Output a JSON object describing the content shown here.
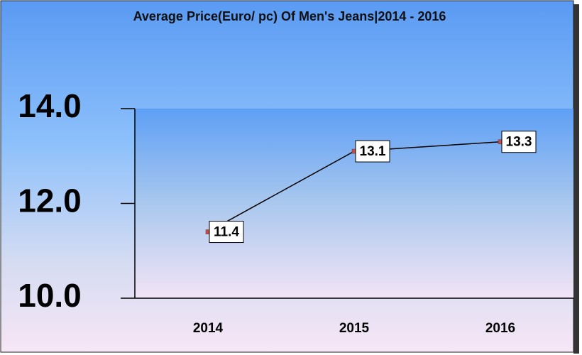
{
  "chart_data": {
    "type": "line",
    "title": "Average Price(Euro/ pc) Of Men's Jeans|2014 - 2016",
    "categories": [
      "2014",
      "2015",
      "2016"
    ],
    "values": [
      11.4,
      13.1,
      13.3
    ],
    "color": "#000000",
    "ylim": [
      10,
      14
    ],
    "yticks": [
      {
        "value": 10,
        "label": "10.0"
      },
      {
        "value": 12,
        "label": "12.0"
      },
      {
        "value": 14,
        "label": "14.0"
      }
    ]
  }
}
